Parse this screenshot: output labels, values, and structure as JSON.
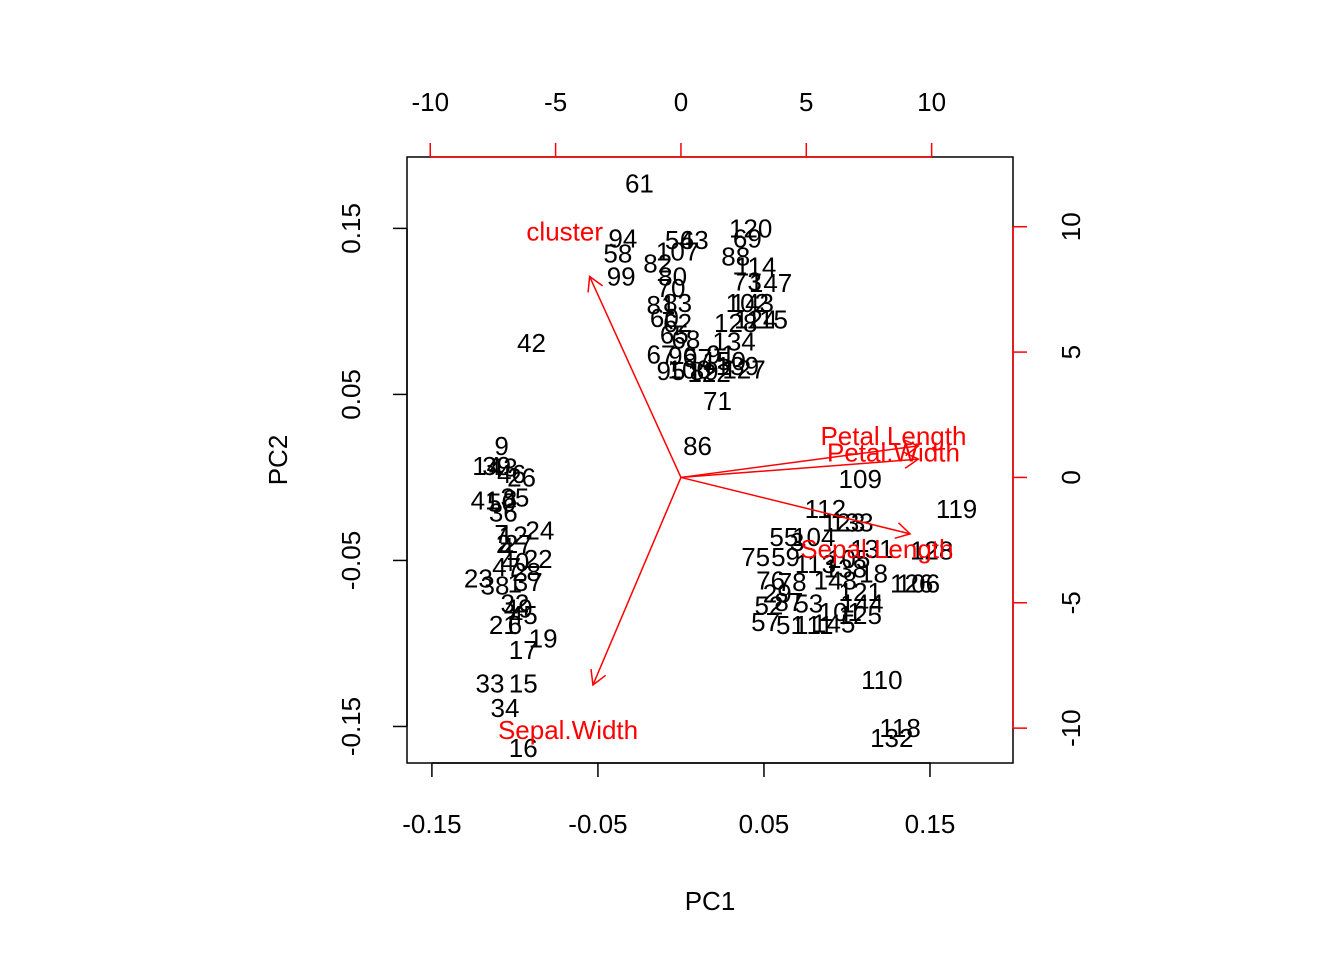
{
  "chart_data": {
    "type": "scatter",
    "xlabel": "PC1",
    "ylabel": "PC2",
    "xlim": [
      -0.165,
      0.2
    ],
    "ylim": [
      -0.172,
      0.193
    ],
    "x_ticks": [
      -0.15,
      -0.05,
      0.05,
      0.15
    ],
    "x_tick_labels": [
      "-0.15",
      "-0.05",
      "0.05",
      "0.15"
    ],
    "y_ticks": [
      -0.15,
      -0.05,
      0.05,
      0.15
    ],
    "y_tick_labels": [
      "-0.15",
      "-0.05",
      "0.05",
      "0.15"
    ],
    "top_ticks": [
      -10,
      -5,
      0,
      5,
      10
    ],
    "top_tick_labels": [
      "-10",
      "-5",
      "0",
      "5",
      "10"
    ],
    "right_ticks": [
      -10,
      -5,
      0,
      5,
      10
    ],
    "right_tick_labels": [
      "-10",
      "-5",
      "0",
      "5",
      "10"
    ],
    "secondary_scale_per_unit": 0.0151,
    "colors": {
      "observations": "#000000",
      "loadings": "#ff0000"
    },
    "observations": [
      {
        "label": "61",
        "x": -0.025,
        "y": 0.177
      },
      {
        "label": "94",
        "x": -0.035,
        "y": 0.144
      },
      {
        "label": "58",
        "x": -0.038,
        "y": 0.135
      },
      {
        "label": "99",
        "x": -0.036,
        "y": 0.121
      },
      {
        "label": "42",
        "x": -0.09,
        "y": 0.081
      },
      {
        "label": "63",
        "x": 0.008,
        "y": 0.143
      },
      {
        "label": "54",
        "x": -0.001,
        "y": 0.143
      },
      {
        "label": "107",
        "x": -0.002,
        "y": 0.136
      },
      {
        "label": "82",
        "x": -0.014,
        "y": 0.129
      },
      {
        "label": "80",
        "x": -0.005,
        "y": 0.121
      },
      {
        "label": "70",
        "x": -0.006,
        "y": 0.114
      },
      {
        "label": "81",
        "x": -0.012,
        "y": 0.104
      },
      {
        "label": "83",
        "x": -0.002,
        "y": 0.105
      },
      {
        "label": "60",
        "x": -0.01,
        "y": 0.096
      },
      {
        "label": "62",
        "x": -0.002,
        "y": 0.093
      },
      {
        "label": "65",
        "x": -0.004,
        "y": 0.086
      },
      {
        "label": "68",
        "x": 0.003,
        "y": 0.083
      },
      {
        "label": "67",
        "x": -0.012,
        "y": 0.074
      },
      {
        "label": "96",
        "x": 0.001,
        "y": 0.073
      },
      {
        "label": "97",
        "x": 0.01,
        "y": 0.072
      },
      {
        "label": "91",
        "x": 0.024,
        "y": 0.074
      },
      {
        "label": "95",
        "x": -0.006,
        "y": 0.064
      },
      {
        "label": "100",
        "x": 0.005,
        "y": 0.065
      },
      {
        "label": "89",
        "x": 0.014,
        "y": 0.064
      },
      {
        "label": "120",
        "x": 0.042,
        "y": 0.15
      },
      {
        "label": "69",
        "x": 0.04,
        "y": 0.144
      },
      {
        "label": "88",
        "x": 0.033,
        "y": 0.133
      },
      {
        "label": "114",
        "x": 0.045,
        "y": 0.127
      },
      {
        "label": "147",
        "x": 0.054,
        "y": 0.117
      },
      {
        "label": "73",
        "x": 0.04,
        "y": 0.118
      },
      {
        "label": "102",
        "x": 0.04,
        "y": 0.105
      },
      {
        "label": "143",
        "x": 0.043,
        "y": 0.105
      },
      {
        "label": "115",
        "x": 0.052,
        "y": 0.095
      },
      {
        "label": "128",
        "x": 0.033,
        "y": 0.093
      },
      {
        "label": "124",
        "x": 0.045,
        "y": 0.095
      },
      {
        "label": "134",
        "x": 0.032,
        "y": 0.082
      },
      {
        "label": "150",
        "x": 0.026,
        "y": 0.07
      },
      {
        "label": "139",
        "x": 0.034,
        "y": 0.067
      },
      {
        "label": "127",
        "x": 0.038,
        "y": 0.065
      },
      {
        "label": "122",
        "x": 0.017,
        "y": 0.063
      },
      {
        "label": "71",
        "x": 0.022,
        "y": 0.046
      },
      {
        "label": "86",
        "x": 0.01,
        "y": 0.019
      },
      {
        "label": "9",
        "x": -0.108,
        "y": 0.019
      },
      {
        "label": "14",
        "x": -0.117,
        "y": 0.007
      },
      {
        "label": "39",
        "x": -0.111,
        "y": 0.007
      },
      {
        "label": "43",
        "x": -0.107,
        "y": 0.006
      },
      {
        "label": "46",
        "x": -0.102,
        "y": 0.002
      },
      {
        "label": "26",
        "x": -0.096,
        "y": 0.0
      },
      {
        "label": "41",
        "x": -0.118,
        "y": -0.014
      },
      {
        "label": "50",
        "x": -0.108,
        "y": -0.015
      },
      {
        "label": "8",
        "x": -0.103,
        "y": -0.013
      },
      {
        "label": "35",
        "x": -0.1,
        "y": -0.012
      },
      {
        "label": "36",
        "x": -0.107,
        "y": -0.021
      },
      {
        "label": "24",
        "x": -0.085,
        "y": -0.032
      },
      {
        "label": "7",
        "x": -0.108,
        "y": -0.034
      },
      {
        "label": "12",
        "x": -0.101,
        "y": -0.035
      },
      {
        "label": "2",
        "x": -0.107,
        "y": -0.04
      },
      {
        "label": "4",
        "x": -0.105,
        "y": -0.042
      },
      {
        "label": "27",
        "x": -0.098,
        "y": -0.04
      },
      {
        "label": "47",
        "x": -0.105,
        "y": -0.054
      },
      {
        "label": "40",
        "x": -0.1,
        "y": -0.051
      },
      {
        "label": "22",
        "x": -0.086,
        "y": -0.049
      },
      {
        "label": "28",
        "x": -0.093,
        "y": -0.057
      },
      {
        "label": "23",
        "x": -0.122,
        "y": -0.061
      },
      {
        "label": "38",
        "x": -0.112,
        "y": -0.065
      },
      {
        "label": "1",
        "x": -0.1,
        "y": -0.064
      },
      {
        "label": "37",
        "x": -0.092,
        "y": -0.063
      },
      {
        "label": "32",
        "x": -0.1,
        "y": -0.076
      },
      {
        "label": "49",
        "x": -0.098,
        "y": -0.079
      },
      {
        "label": "45",
        "x": -0.095,
        "y": -0.083
      },
      {
        "label": "21",
        "x": -0.107,
        "y": -0.089
      },
      {
        "label": "6",
        "x": -0.1,
        "y": -0.089
      },
      {
        "label": "19",
        "x": -0.083,
        "y": -0.097
      },
      {
        "label": "17",
        "x": -0.095,
        "y": -0.104
      },
      {
        "label": "33",
        "x": -0.115,
        "y": -0.124
      },
      {
        "label": "15",
        "x": -0.095,
        "y": -0.124
      },
      {
        "label": "34",
        "x": -0.106,
        "y": -0.139
      },
      {
        "label": "16",
        "x": -0.095,
        "y": -0.163
      },
      {
        "label": "109",
        "x": 0.108,
        "y": -0.001
      },
      {
        "label": "119",
        "x": 0.166,
        "y": -0.019
      },
      {
        "label": "112",
        "x": 0.087,
        "y": -0.019
      },
      {
        "label": "123",
        "x": 0.098,
        "y": -0.027
      },
      {
        "label": "133",
        "x": 0.103,
        "y": -0.027
      },
      {
        "label": "55",
        "x": 0.062,
        "y": -0.036
      },
      {
        "label": "104",
        "x": 0.08,
        "y": -0.036
      },
      {
        "label": "3",
        "x": 0.07,
        "y": -0.039
      },
      {
        "label": "131",
        "x": 0.115,
        "y": -0.043
      },
      {
        "label": "128",
        "x": 0.151,
        "y": -0.044
      },
      {
        "label": "75",
        "x": 0.045,
        "y": -0.048
      },
      {
        "label": "59",
        "x": 0.063,
        "y": -0.048
      },
      {
        "label": "105",
        "x": 0.101,
        "y": -0.049
      },
      {
        "label": "113",
        "x": 0.081,
        "y": -0.052
      },
      {
        "label": "138",
        "x": 0.099,
        "y": -0.055
      },
      {
        "label": "18",
        "x": 0.116,
        "y": -0.058
      },
      {
        "label": "76",
        "x": 0.054,
        "y": -0.062
      },
      {
        "label": "78",
        "x": 0.067,
        "y": -0.063
      },
      {
        "label": "148",
        "x": 0.093,
        "y": -0.062
      },
      {
        "label": "106",
        "x": 0.143,
        "y": -0.064
      },
      {
        "label": "126",
        "x": 0.139,
        "y": -0.064
      },
      {
        "label": "29",
        "x": 0.058,
        "y": -0.07
      },
      {
        "label": "121",
        "x": 0.108,
        "y": -0.069
      },
      {
        "label": "52",
        "x": 0.053,
        "y": -0.077
      },
      {
        "label": "87",
        "x": 0.065,
        "y": -0.075
      },
      {
        "label": "53",
        "x": 0.077,
        "y": -0.076
      },
      {
        "label": "144",
        "x": 0.109,
        "y": -0.076
      },
      {
        "label": "101",
        "x": 0.096,
        "y": -0.081
      },
      {
        "label": "125",
        "x": 0.108,
        "y": -0.083
      },
      {
        "label": "57",
        "x": 0.051,
        "y": -0.087
      },
      {
        "label": "51",
        "x": 0.066,
        "y": -0.089
      },
      {
        "label": "111",
        "x": 0.08,
        "y": -0.089
      },
      {
        "label": "145",
        "x": 0.092,
        "y": -0.088
      },
      {
        "label": "110",
        "x": 0.121,
        "y": -0.122
      },
      {
        "label": "118",
        "x": 0.132,
        "y": -0.151
      },
      {
        "label": "132",
        "x": 0.127,
        "y": -0.157
      }
    ],
    "loadings": [
      {
        "name": "cluster",
        "x": -0.055,
        "y": 0.121,
        "label_x": -0.07,
        "label_y": 0.148
      },
      {
        "name": "Petal.Length",
        "x": 0.143,
        "y": 0.019,
        "label_x": 0.128,
        "label_y": 0.025
      },
      {
        "name": "Petal.Width",
        "x": 0.143,
        "y": 0.011,
        "label_x": 0.128,
        "label_y": 0.015
      },
      {
        "name": "Sepal.Length",
        "x": 0.138,
        "y": -0.034,
        "label_x": 0.118,
        "label_y": -0.043
      },
      {
        "name": "Sepal.Width",
        "x": -0.053,
        "y": -0.125,
        "label_x": -0.068,
        "label_y": -0.152
      }
    ]
  }
}
